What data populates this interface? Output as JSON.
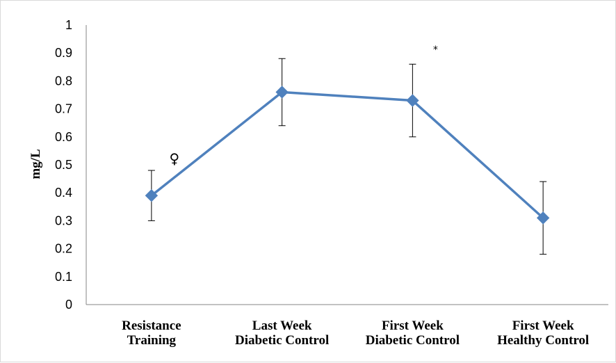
{
  "chart_data": {
    "type": "line",
    "title": "",
    "xlabel": "",
    "ylabel": "mg/L",
    "ylim": [
      0,
      1
    ],
    "y_ticks": [
      "0",
      "0.1",
      "0.2",
      "0.3",
      "0.4",
      "0.5",
      "0.6",
      "0.7",
      "0.8",
      "0.9",
      "1"
    ],
    "categories": [
      [
        "Resistance",
        "Training"
      ],
      [
        "Last Week",
        "Diabetic Control"
      ],
      [
        "First Week",
        "Diabetic Control"
      ],
      [
        "First Week",
        "Healthy Control"
      ]
    ],
    "series": [
      {
        "values": [
          0.39,
          0.76,
          0.73,
          0.31
        ],
        "error_upper": [
          0.48,
          0.88,
          0.86,
          0.44
        ],
        "error_lower": [
          0.3,
          0.64,
          0.6,
          0.18
        ],
        "color": "#4f81bd",
        "marker": "diamond"
      }
    ],
    "annotations": [
      {
        "text": "♀",
        "category_index": 0,
        "y": 0.52
      },
      {
        "text": "*",
        "category_index": 2,
        "y": 0.91
      }
    ],
    "grid": false,
    "legend": "none"
  }
}
